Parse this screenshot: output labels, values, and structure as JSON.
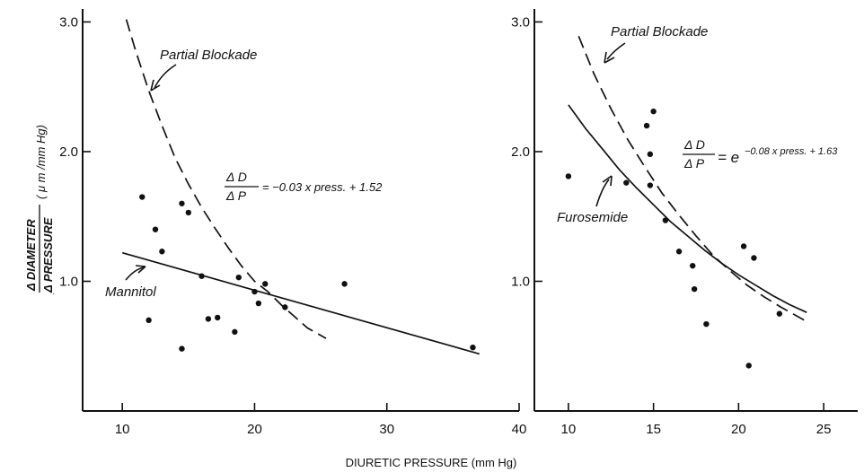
{
  "chart_data": [
    {
      "type": "scatter",
      "panel": "left",
      "xlim": [
        7,
        40
      ],
      "ylim": [
        0,
        3.1
      ],
      "xticks": [
        10,
        20,
        30,
        40
      ],
      "yticks": [
        1.0,
        2.0,
        3.0
      ],
      "xtick_labels": [
        "10",
        "20",
        "30",
        "40"
      ],
      "ytick_labels": [
        "1.0",
        "2.0",
        "3.0"
      ],
      "grid": false,
      "xlabel": "",
      "ylabel": "",
      "points": [
        {
          "x": 11.5,
          "y": 1.65
        },
        {
          "x": 12.0,
          "y": 0.7
        },
        {
          "x": 12.5,
          "y": 1.4
        },
        {
          "x": 13.0,
          "y": 1.23
        },
        {
          "x": 14.5,
          "y": 1.6
        },
        {
          "x": 15.0,
          "y": 1.53
        },
        {
          "x": 14.5,
          "y": 0.48
        },
        {
          "x": 16.0,
          "y": 1.04
        },
        {
          "x": 16.5,
          "y": 0.71
        },
        {
          "x": 17.2,
          "y": 0.72
        },
        {
          "x": 18.5,
          "y": 0.61
        },
        {
          "x": 18.8,
          "y": 1.03
        },
        {
          "x": 20.0,
          "y": 0.92
        },
        {
          "x": 20.3,
          "y": 0.83
        },
        {
          "x": 20.8,
          "y": 0.98
        },
        {
          "x": 22.3,
          "y": 0.8
        },
        {
          "x": 26.8,
          "y": 0.98
        },
        {
          "x": 36.5,
          "y": 0.49
        }
      ],
      "lines": [
        {
          "name": "Mannitol",
          "style": "solid",
          "points": [
            [
              10,
              1.22
            ],
            [
              37,
              0.44
            ]
          ]
        },
        {
          "name": "Partial Blockade",
          "style": "dashed",
          "points": [
            [
              10.3,
              3.02
            ],
            [
              11,
              2.78
            ],
            [
              12,
              2.47
            ],
            [
              13,
              2.2
            ],
            [
              14,
              1.95
            ],
            [
              15,
              1.75
            ],
            [
              16,
              1.57
            ],
            [
              17,
              1.41
            ],
            [
              18,
              1.26
            ],
            [
              19,
              1.12
            ],
            [
              20,
              1.0
            ],
            [
              21,
              0.92
            ],
            [
              22,
              0.82
            ],
            [
              23,
              0.73
            ],
            [
              24,
              0.64
            ],
            [
              25.4,
              0.56
            ]
          ]
        }
      ],
      "annotations": {
        "partial_blockade": "Partial Blockade",
        "mannitol": "Mannitol",
        "equation": "ΔD/ΔP = −0.03 x press. + 1.52",
        "eq_num": "Δ D",
        "eq_den": "Δ P",
        "eq_rest": "= −0.03 x press. + 1.52"
      }
    },
    {
      "type": "scatter",
      "panel": "right",
      "xlim": [
        8,
        27
      ],
      "ylim": [
        0,
        3.1
      ],
      "xticks": [
        10,
        15,
        20,
        25
      ],
      "yticks": [
        1.0,
        2.0,
        3.0
      ],
      "xtick_labels": [
        "10",
        "15",
        "20",
        "25"
      ],
      "ytick_labels": [
        "1.0",
        "2.0",
        "3.0"
      ],
      "grid": false,
      "xlabel": "",
      "ylabel": "",
      "points": [
        {
          "x": 10.0,
          "y": 1.81
        },
        {
          "x": 13.4,
          "y": 1.76
        },
        {
          "x": 14.6,
          "y": 2.2
        },
        {
          "x": 14.8,
          "y": 1.98
        },
        {
          "x": 15.0,
          "y": 2.31
        },
        {
          "x": 14.8,
          "y": 1.74
        },
        {
          "x": 15.7,
          "y": 1.47
        },
        {
          "x": 16.5,
          "y": 1.23
        },
        {
          "x": 17.3,
          "y": 1.12
        },
        {
          "x": 17.4,
          "y": 0.94
        },
        {
          "x": 18.1,
          "y": 0.67
        },
        {
          "x": 20.3,
          "y": 1.27
        },
        {
          "x": 20.9,
          "y": 1.18
        },
        {
          "x": 20.6,
          "y": 0.35
        },
        {
          "x": 22.4,
          "y": 0.75
        }
      ],
      "lines": [
        {
          "name": "Furosemide",
          "style": "solid",
          "points": [
            [
              10,
              2.36
            ],
            [
              11,
              2.18
            ],
            [
              12,
              2.02
            ],
            [
              13,
              1.86
            ],
            [
              14,
              1.72
            ],
            [
              15,
              1.59
            ],
            [
              16,
              1.46
            ],
            [
              17,
              1.35
            ],
            [
              18,
              1.24
            ],
            [
              19,
              1.14
            ],
            [
              20,
              1.05
            ],
            [
              21,
              0.97
            ],
            [
              22,
              0.89
            ],
            [
              23,
              0.82
            ],
            [
              24,
              0.76
            ]
          ]
        },
        {
          "name": "Partial Blockade",
          "style": "dashed",
          "points": [
            [
              10.6,
              2.89
            ],
            [
              11.5,
              2.6
            ],
            [
              12.5,
              2.33
            ],
            [
              13.5,
              2.09
            ],
            [
              14.5,
              1.88
            ],
            [
              15.5,
              1.68
            ],
            [
              16.5,
              1.51
            ],
            [
              17.5,
              1.35
            ],
            [
              18.5,
              1.2
            ],
            [
              19.5,
              1.08
            ],
            [
              20.5,
              0.97
            ],
            [
              21.5,
              0.88
            ],
            [
              22.5,
              0.8
            ],
            [
              24,
              0.69
            ]
          ]
        }
      ],
      "annotations": {
        "partial_blockade": "Partial Blockade",
        "furosemide": "Furosemide",
        "equation": "ΔD/ΔP = e^(−0.08 x press. + 1.63)",
        "eq_num": "Δ D",
        "eq_den": "Δ P",
        "eq_base": "= e",
        "eq_exp": "−0.08 x press. + 1.63"
      }
    }
  ],
  "shared": {
    "xlabel": "DIURETIC PRESSURE (mm Hg)",
    "ylabel_num": "Δ DIAMETER",
    "ylabel_den": "Δ PRESSURE",
    "ylabel_unit": "( μ m /mm Hg)"
  }
}
